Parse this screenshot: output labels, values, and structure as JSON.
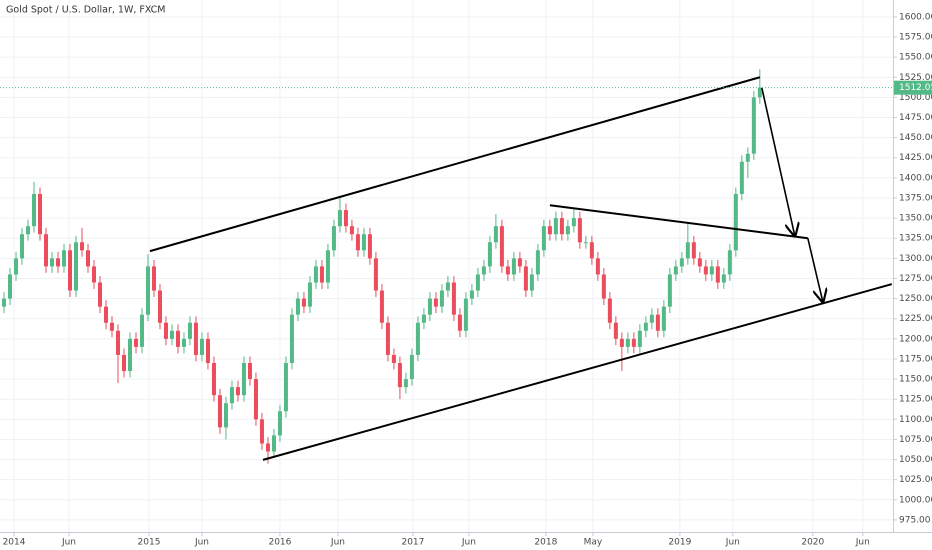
{
  "chart_data": {
    "type": "candlestick",
    "title": "Gold Spot / U.S. Dollar, 1W, FXCM",
    "up_color": "#53b987",
    "down_color": "#eb4d5c",
    "drawing_color": "#000000",
    "grid": true,
    "ylim": [
      960,
      1621
    ],
    "xlim": [
      -0.67,
      148.2
    ],
    "yticks": [
      {
        "value": 975,
        "label": "975.00"
      },
      {
        "value": 1000,
        "label": "1000.00"
      },
      {
        "value": 1025,
        "label": "1025.00"
      },
      {
        "value": 1050,
        "label": "1050.00"
      },
      {
        "value": 1075,
        "label": "1075.00"
      },
      {
        "value": 1100,
        "label": "1100.00"
      },
      {
        "value": 1125,
        "label": "1125.00"
      },
      {
        "value": 1150,
        "label": "1150.00"
      },
      {
        "value": 1175,
        "label": "1175.00"
      },
      {
        "value": 1200,
        "label": "1200.00"
      },
      {
        "value": 1225,
        "label": "1225.00"
      },
      {
        "value": 1250,
        "label": "1250.00"
      },
      {
        "value": 1275,
        "label": "1275.00"
      },
      {
        "value": 1300,
        "label": "1300.00"
      },
      {
        "value": 1325,
        "label": "1325.00"
      },
      {
        "value": 1350,
        "label": "1350.00"
      },
      {
        "value": 1375,
        "label": "1375.00"
      },
      {
        "value": 1400,
        "label": "1400.00"
      },
      {
        "value": 1425,
        "label": "1425.00"
      },
      {
        "value": 1450,
        "label": "1450.00"
      },
      {
        "value": 1475,
        "label": "1475.00"
      },
      {
        "value": 1500,
        "label": "1500.00"
      },
      {
        "value": 1525,
        "label": "1525.00"
      },
      {
        "value": 1550,
        "label": "1550.00"
      },
      {
        "value": 1575,
        "label": "1575.00"
      },
      {
        "value": 1600,
        "label": "1600.00"
      }
    ],
    "xticks": [
      {
        "value": 1.67,
        "label": "2014"
      },
      {
        "value": 10.83,
        "label": "Jun"
      },
      {
        "value": 24.17,
        "label": "2015"
      },
      {
        "value": 33,
        "label": "Jun"
      },
      {
        "value": 46,
        "label": "2016"
      },
      {
        "value": 55.67,
        "label": "Jun"
      },
      {
        "value": 68.17,
        "label": "2017"
      },
      {
        "value": 77.5,
        "label": "Jun"
      },
      {
        "value": 90.33,
        "label": "2018"
      },
      {
        "value": 98.17,
        "label": "May"
      },
      {
        "value": 112.67,
        "label": "2019"
      },
      {
        "value": 121.5,
        "label": "Jun"
      },
      {
        "value": 134.83,
        "label": "2020"
      },
      {
        "value": 143.17,
        "label": "Jun"
      }
    ],
    "candles": [
      [
        1240,
        1258,
        1232,
        1250
      ],
      [
        1250,
        1288,
        1242,
        1280
      ],
      [
        1280,
        1308,
        1272,
        1300
      ],
      [
        1300,
        1338,
        1292,
        1330
      ],
      [
        1330,
        1348,
        1322,
        1340
      ],
      [
        1340,
        1395,
        1332,
        1380
      ],
      [
        1380,
        1388,
        1322,
        1330
      ],
      [
        1330,
        1338,
        1282,
        1290
      ],
      [
        1290,
        1308,
        1282,
        1300
      ],
      [
        1300,
        1308,
        1282,
        1290
      ],
      [
        1290,
        1318,
        1282,
        1310
      ],
      [
        1310,
        1318,
        1252,
        1260
      ],
      [
        1260,
        1328,
        1252,
        1320
      ],
      [
        1320,
        1338,
        1302,
        1310
      ],
      [
        1310,
        1318,
        1282,
        1290
      ],
      [
        1290,
        1298,
        1262,
        1270
      ],
      [
        1270,
        1278,
        1232,
        1240
      ],
      [
        1240,
        1248,
        1212,
        1220
      ],
      [
        1220,
        1228,
        1202,
        1210
      ],
      [
        1210,
        1218,
        1145,
        1180
      ],
      [
        1180,
        1188,
        1152,
        1160
      ],
      [
        1160,
        1208,
        1152,
        1200
      ],
      [
        1200,
        1208,
        1182,
        1190
      ],
      [
        1190,
        1238,
        1182,
        1230
      ],
      [
        1230,
        1305,
        1222,
        1290
      ],
      [
        1290,
        1298,
        1252,
        1260
      ],
      [
        1260,
        1268,
        1212,
        1220
      ],
      [
        1220,
        1228,
        1192,
        1200
      ],
      [
        1200,
        1218,
        1192,
        1210
      ],
      [
        1210,
        1218,
        1182,
        1190
      ],
      [
        1190,
        1208,
        1182,
        1200
      ],
      [
        1200,
        1228,
        1192,
        1220
      ],
      [
        1220,
        1228,
        1172,
        1180
      ],
      [
        1180,
        1208,
        1172,
        1200
      ],
      [
        1200,
        1208,
        1162,
        1170
      ],
      [
        1170,
        1178,
        1122,
        1130
      ],
      [
        1130,
        1138,
        1082,
        1090
      ],
      [
        1090,
        1128,
        1075,
        1120
      ],
      [
        1120,
        1148,
        1112,
        1140
      ],
      [
        1140,
        1148,
        1122,
        1130
      ],
      [
        1130,
        1178,
        1122,
        1170
      ],
      [
        1170,
        1178,
        1142,
        1150
      ],
      [
        1150,
        1158,
        1092,
        1100
      ],
      [
        1100,
        1108,
        1062,
        1070
      ],
      [
        1070,
        1078,
        1045,
        1060
      ],
      [
        1060,
        1088,
        1052,
        1080
      ],
      [
        1080,
        1118,
        1072,
        1110
      ],
      [
        1110,
        1178,
        1102,
        1170
      ],
      [
        1170,
        1238,
        1162,
        1230
      ],
      [
        1230,
        1258,
        1222,
        1250
      ],
      [
        1250,
        1258,
        1232,
        1240
      ],
      [
        1240,
        1278,
        1232,
        1270
      ],
      [
        1270,
        1298,
        1262,
        1290
      ],
      [
        1290,
        1298,
        1262,
        1270
      ],
      [
        1270,
        1318,
        1262,
        1310
      ],
      [
        1310,
        1348,
        1302,
        1340
      ],
      [
        1340,
        1375,
        1332,
        1360
      ],
      [
        1360,
        1368,
        1332,
        1340
      ],
      [
        1340,
        1348,
        1322,
        1330
      ],
      [
        1330,
        1338,
        1302,
        1310
      ],
      [
        1310,
        1338,
        1302,
        1330
      ],
      [
        1330,
        1338,
        1292,
        1300
      ],
      [
        1300,
        1308,
        1252,
        1260
      ],
      [
        1260,
        1268,
        1212,
        1220
      ],
      [
        1220,
        1228,
        1172,
        1180
      ],
      [
        1180,
        1188,
        1162,
        1170
      ],
      [
        1170,
        1178,
        1125,
        1140
      ],
      [
        1140,
        1158,
        1132,
        1150
      ],
      [
        1150,
        1188,
        1142,
        1180
      ],
      [
        1180,
        1228,
        1172,
        1220
      ],
      [
        1220,
        1238,
        1212,
        1230
      ],
      [
        1230,
        1258,
        1222,
        1250
      ],
      [
        1250,
        1258,
        1232,
        1240
      ],
      [
        1240,
        1268,
        1232,
        1260
      ],
      [
        1260,
        1278,
        1252,
        1270
      ],
      [
        1270,
        1278,
        1222,
        1230
      ],
      [
        1230,
        1238,
        1202,
        1210
      ],
      [
        1210,
        1258,
        1202,
        1250
      ],
      [
        1250,
        1268,
        1242,
        1260
      ],
      [
        1260,
        1288,
        1252,
        1280
      ],
      [
        1280,
        1298,
        1272,
        1290
      ],
      [
        1290,
        1328,
        1282,
        1320
      ],
      [
        1320,
        1355,
        1312,
        1340
      ],
      [
        1340,
        1348,
        1282,
        1290
      ],
      [
        1290,
        1298,
        1272,
        1280
      ],
      [
        1280,
        1308,
        1272,
        1300
      ],
      [
        1300,
        1308,
        1282,
        1290
      ],
      [
        1290,
        1298,
        1252,
        1260
      ],
      [
        1260,
        1288,
        1252,
        1280
      ],
      [
        1280,
        1318,
        1272,
        1310
      ],
      [
        1310,
        1348,
        1302,
        1340
      ],
      [
        1340,
        1348,
        1322,
        1330
      ],
      [
        1330,
        1358,
        1322,
        1350
      ],
      [
        1350,
        1358,
        1322,
        1330
      ],
      [
        1330,
        1348,
        1322,
        1340
      ],
      [
        1340,
        1362,
        1332,
        1350
      ],
      [
        1350,
        1358,
        1312,
        1320
      ],
      [
        1320,
        1328,
        1312,
        1320
      ],
      [
        1320,
        1328,
        1292,
        1300
      ],
      [
        1300,
        1308,
        1272,
        1280
      ],
      [
        1280,
        1288,
        1242,
        1250
      ],
      [
        1250,
        1258,
        1212,
        1220
      ],
      [
        1220,
        1228,
        1192,
        1200
      ],
      [
        1200,
        1208,
        1160,
        1190
      ],
      [
        1190,
        1208,
        1182,
        1200
      ],
      [
        1200,
        1208,
        1182,
        1190
      ],
      [
        1190,
        1218,
        1182,
        1210
      ],
      [
        1210,
        1228,
        1202,
        1220
      ],
      [
        1220,
        1238,
        1212,
        1230
      ],
      [
        1230,
        1238,
        1202,
        1210
      ],
      [
        1210,
        1248,
        1202,
        1240
      ],
      [
        1240,
        1288,
        1232,
        1280
      ],
      [
        1280,
        1298,
        1272,
        1290
      ],
      [
        1290,
        1308,
        1282,
        1300
      ],
      [
        1300,
        1345,
        1292,
        1320
      ],
      [
        1320,
        1328,
        1292,
        1300
      ],
      [
        1300,
        1308,
        1282,
        1290
      ],
      [
        1290,
        1298,
        1272,
        1280
      ],
      [
        1280,
        1298,
        1272,
        1290
      ],
      [
        1290,
        1298,
        1262,
        1270
      ],
      [
        1270,
        1288,
        1262,
        1280
      ],
      [
        1280,
        1318,
        1272,
        1310
      ],
      [
        1310,
        1388,
        1302,
        1380
      ],
      [
        1380,
        1428,
        1372,
        1420
      ],
      [
        1420,
        1438,
        1400,
        1430
      ],
      [
        1430,
        1508,
        1422,
        1500
      ],
      [
        1500,
        1535,
        1492,
        1512.05
      ]
    ],
    "drawings": [
      {
        "kind": "line",
        "points": [
          [
            24.33,
            1309
          ],
          [
            126,
            1525
          ]
        ]
      },
      {
        "kind": "line",
        "points": [
          [
            43.17,
            1049.6
          ],
          [
            148,
            1268
          ]
        ]
      },
      {
        "kind": "line",
        "points": [
          [
            91,
            1366
          ],
          [
            134,
            1325
          ]
        ]
      },
      {
        "kind": "arrow",
        "points": [
          [
            126.33,
            1512
          ],
          [
            131.83,
            1328
          ]
        ]
      },
      {
        "kind": "arrow",
        "points": [
          [
            134,
            1325
          ],
          [
            136.5,
            1246
          ]
        ]
      }
    ]
  }
}
